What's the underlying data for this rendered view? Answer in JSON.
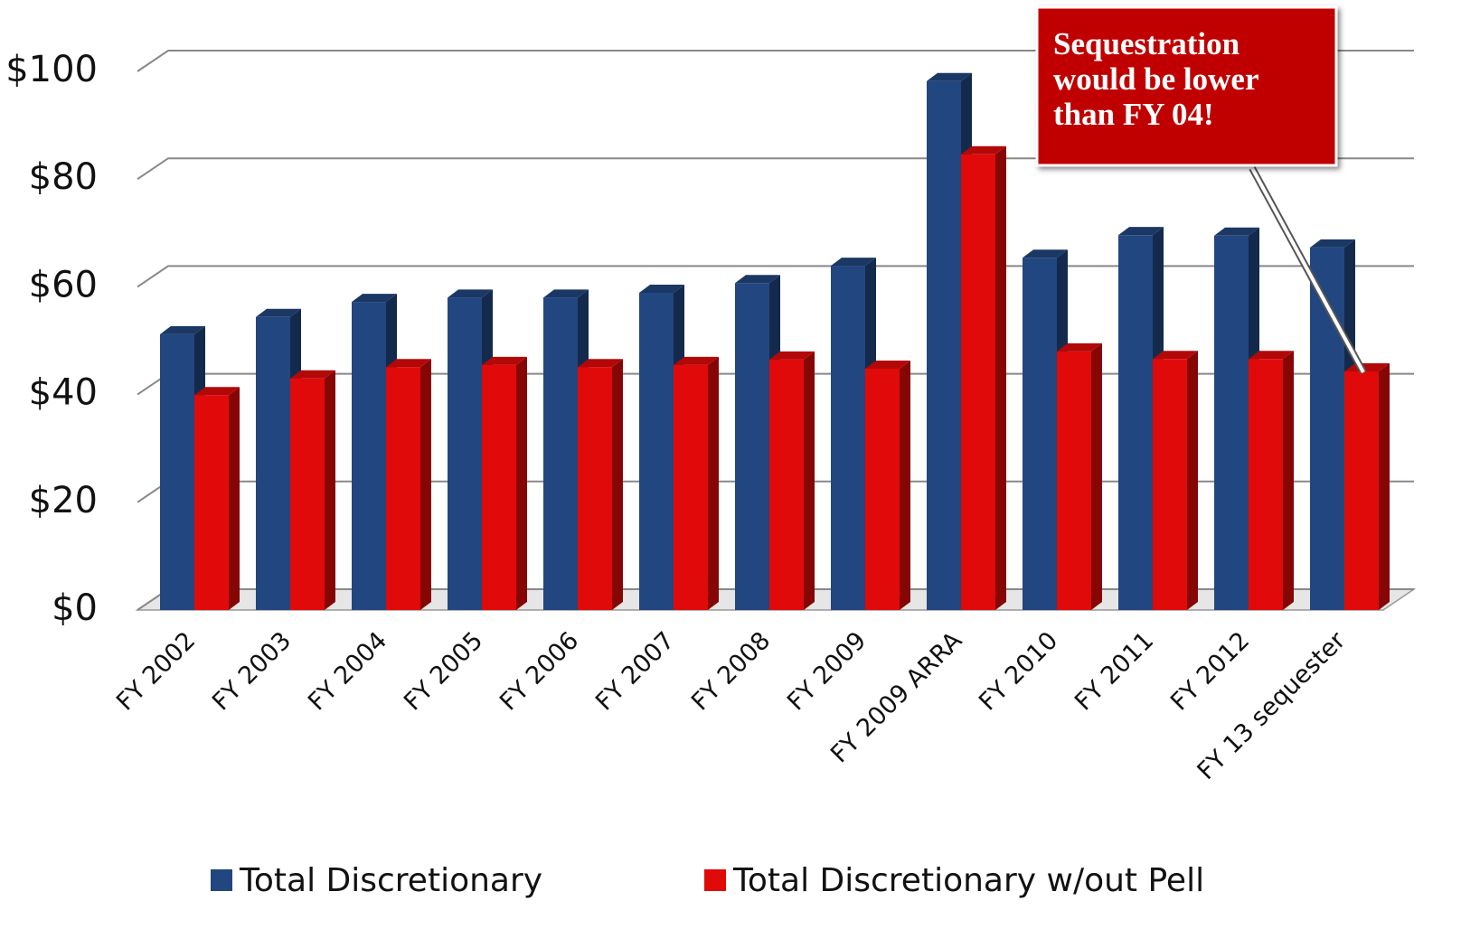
{
  "chart_data": {
    "type": "bar3d",
    "categories": [
      "FY 2002",
      "FY 2003",
      "FY 2004",
      "FY 2005",
      "FY 2006",
      "FY 2007",
      "FY 2008",
      "FY 2009",
      "FY 2009 ARRA",
      "FY 2010",
      "FY 2011",
      "FY 2012",
      "FY 13 sequester"
    ],
    "series": [
      {
        "name": "Total Discretionary",
        "color": "#22467f",
        "values": [
          51.2,
          54.4,
          57.2,
          58,
          58,
          58.9,
          60.7,
          63.9,
          98.2,
          65.4,
          69.6,
          69.5,
          67.3
        ]
      },
      {
        "name": "Total Discretionary w/out Pell",
        "color": "#e00a0a",
        "values": [
          39.9,
          43,
          45.1,
          45.5,
          45.1,
          45.5,
          46.5,
          44.8,
          84.6,
          48,
          46.6,
          46.6,
          44.3
        ]
      }
    ],
    "ylim": [
      0,
      100
    ],
    "yticks": [
      {
        "value": 0,
        "label": "$0"
      },
      {
        "value": 20,
        "label": "$20"
      },
      {
        "value": 40,
        "label": "$40"
      },
      {
        "value": 60,
        "label": "$60"
      },
      {
        "value": 80,
        "label": "$80"
      },
      {
        "value": 100,
        "label": "$100"
      }
    ],
    "grid": true,
    "legend": "bottom",
    "annotation": [
      "Sequestration",
      "would be lower",
      "than FY 04!"
    ]
  }
}
